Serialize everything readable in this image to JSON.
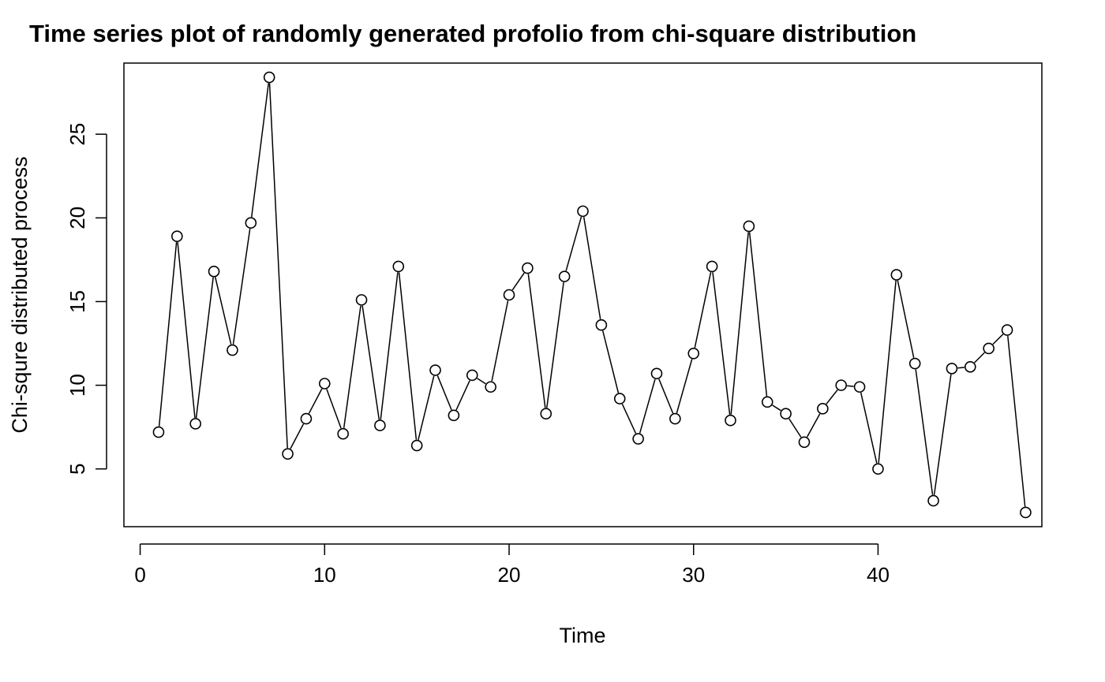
{
  "chart_data": {
    "type": "line",
    "title": "Time series plot of randomly generated profolio from chi-square distribution",
    "xlabel": "Time",
    "ylabel": "Chi-squre distributed process",
    "x_ticks": [
      "0",
      "10",
      "20",
      "30",
      "40"
    ],
    "y_ticks": [
      "5",
      "10",
      "15",
      "20",
      "25"
    ],
    "xlim": [
      -0.88,
      48.88
    ],
    "ylim": [
      1.55,
      29.25
    ],
    "marker": "open-circle",
    "line_color": "#000000",
    "grid": false,
    "series": [
      {
        "x": [
          1,
          2,
          3,
          4,
          5,
          6,
          7,
          8,
          9,
          10,
          11,
          12,
          13,
          14,
          15,
          16,
          17,
          18,
          19,
          20,
          21,
          22,
          23,
          24,
          25,
          26,
          27,
          28,
          29,
          30,
          31,
          32,
          33,
          34,
          35,
          36,
          37,
          38,
          39,
          40,
          41,
          42,
          43,
          44,
          45,
          46,
          47,
          48
        ],
        "values": [
          7.2,
          18.9,
          7.7,
          16.8,
          12.1,
          19.7,
          28.4,
          5.9,
          8.0,
          10.1,
          7.1,
          15.1,
          7.6,
          17.1,
          6.4,
          10.9,
          8.2,
          10.6,
          9.9,
          15.4,
          17.0,
          8.3,
          16.5,
          20.4,
          13.6,
          9.2,
          6.8,
          10.7,
          8.0,
          11.9,
          17.1,
          7.9,
          19.5,
          9.0,
          8.3,
          6.6,
          8.6,
          10.0,
          9.9,
          5.0,
          16.6,
          11.3,
          3.1,
          11.0,
          11.1,
          12.2,
          13.3,
          2.4
        ]
      }
    ]
  }
}
